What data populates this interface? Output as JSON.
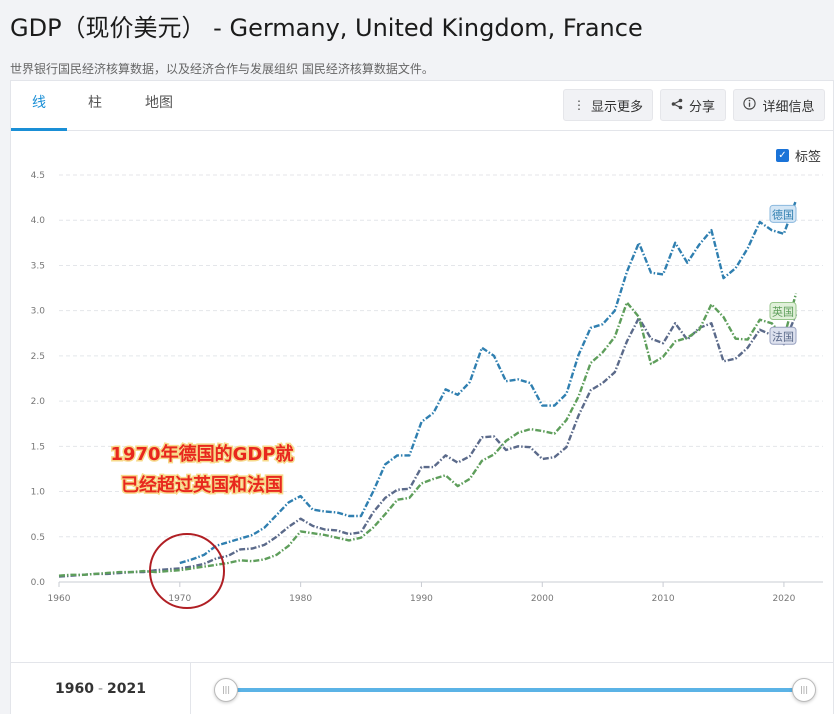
{
  "header": {
    "title": "GDP（现价美元） - Germany, United Kingdom, France",
    "subtitle": "世界银行国民经济核算数据，以及经济合作与发展组织 国民经济核算数据文件。"
  },
  "tabs": [
    {
      "label": "线",
      "active": true
    },
    {
      "label": "柱",
      "active": false
    },
    {
      "label": "地图",
      "active": false
    }
  ],
  "toolbar": {
    "more_label": "显示更多",
    "share_label": "分享",
    "details_label": "详细信息"
  },
  "labels_toggle": {
    "label": "标签",
    "checked": true
  },
  "annotation": {
    "line1": "1970年德国的GDP就",
    "line2": "已经超过英国和法国"
  },
  "slider": {
    "start": "1960",
    "sep": "-",
    "end": "2021"
  },
  "chart_data": {
    "type": "line",
    "x_ticks": [
      1960,
      1970,
      1980,
      1990,
      2000,
      2010,
      2020
    ],
    "y_ticks": [
      "0.0",
      "0.5",
      "1.0",
      "1.5",
      "2.0",
      "2.5",
      "3.0",
      "3.5",
      "4.0",
      "4.5"
    ],
    "xlim": [
      1960,
      2021
    ],
    "ylim": [
      0,
      4.5
    ],
    "grid": "horizontal-dashed",
    "series": [
      {
        "name": "德国",
        "color": "#2f7fb0",
        "label_bg": "#d4e6f5",
        "label_border": "#8ab8de",
        "start_year": 1970,
        "values": [
          0.21,
          0.25,
          0.3,
          0.4,
          0.44,
          0.48,
          0.52,
          0.6,
          0.74,
          0.88,
          0.95,
          0.8,
          0.78,
          0.77,
          0.73,
          0.73,
          1.0,
          1.3,
          1.4,
          1.4,
          1.77,
          1.87,
          2.13,
          2.07,
          2.21,
          2.59,
          2.5,
          2.22,
          2.24,
          2.2,
          1.95,
          1.95,
          2.08,
          2.51,
          2.81,
          2.85,
          3.0,
          3.43,
          3.75,
          3.42,
          3.4,
          3.75,
          3.53,
          3.73,
          3.89,
          3.36,
          3.47,
          3.69,
          3.98,
          3.89,
          3.85,
          4.22
        ]
      },
      {
        "name": "英国",
        "color": "#5e9e5b",
        "label_bg": "#e0f0d9",
        "label_border": "#97c58b",
        "start_year": 1960,
        "values": [
          0.07,
          0.08,
          0.08,
          0.09,
          0.1,
          0.11,
          0.11,
          0.12,
          0.11,
          0.12,
          0.13,
          0.15,
          0.17,
          0.19,
          0.21,
          0.24,
          0.23,
          0.25,
          0.3,
          0.4,
          0.56,
          0.54,
          0.52,
          0.49,
          0.46,
          0.49,
          0.6,
          0.75,
          0.91,
          0.93,
          1.09,
          1.14,
          1.18,
          1.06,
          1.14,
          1.34,
          1.41,
          1.56,
          1.65,
          1.69,
          1.67,
          1.64,
          1.79,
          2.05,
          2.42,
          2.54,
          2.71,
          3.09,
          2.93,
          2.41,
          2.49,
          2.66,
          2.7,
          2.79,
          3.07,
          2.93,
          2.69,
          2.68,
          2.9,
          2.86,
          2.7,
          3.19
        ]
      },
      {
        "name": "法国",
        "color": "#5b6a8a",
        "label_bg": "#dde1ee",
        "label_border": "#99a2c0",
        "start_year": 1960,
        "values": [
          0.06,
          0.07,
          0.08,
          0.09,
          0.09,
          0.1,
          0.11,
          0.11,
          0.13,
          0.14,
          0.15,
          0.17,
          0.2,
          0.26,
          0.29,
          0.36,
          0.37,
          0.41,
          0.5,
          0.61,
          0.7,
          0.62,
          0.58,
          0.57,
          0.53,
          0.55,
          0.77,
          0.93,
          1.02,
          1.03,
          1.27,
          1.27,
          1.4,
          1.32,
          1.39,
          1.6,
          1.61,
          1.46,
          1.5,
          1.49,
          1.36,
          1.38,
          1.49,
          1.84,
          2.12,
          2.2,
          2.32,
          2.66,
          2.92,
          2.69,
          2.64,
          2.86,
          2.68,
          2.81,
          2.86,
          2.44,
          2.47,
          2.59,
          2.79,
          2.73,
          2.63,
          2.96
        ]
      }
    ]
  }
}
